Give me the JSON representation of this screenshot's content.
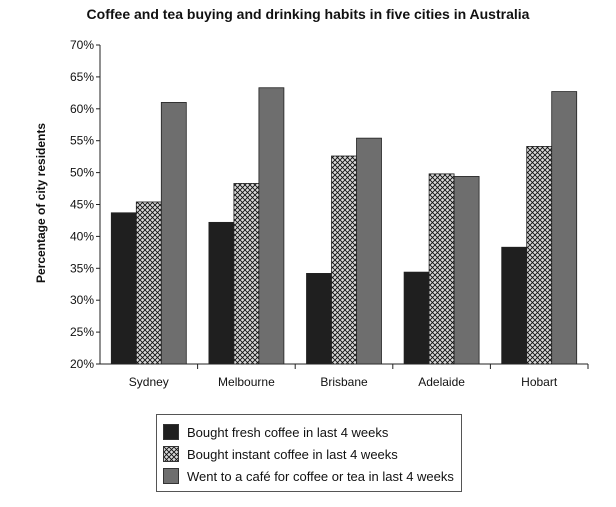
{
  "chart_data": {
    "type": "bar",
    "title": "Coffee and tea buying and drinking habits in five cities in Australia",
    "xlabel": "",
    "ylabel": "Percentage of city residents",
    "ylim": [
      20,
      70
    ],
    "ytick_step": 5,
    "ytick_suffix": "%",
    "grid": false,
    "legend_position": "bottom",
    "categories": [
      "Sydney",
      "Melbourne",
      "Brisbane",
      "Adelaide",
      "Hobart"
    ],
    "series": [
      {
        "name": "Bought fresh coffee in last 4 weeks",
        "color": "#1f1f1f",
        "pattern": "solid",
        "values": [
          43.7,
          42.2,
          34.2,
          34.4,
          38.3
        ]
      },
      {
        "name": "Bought instant coffee in last 4 weeks",
        "color": "#bdbdbd",
        "pattern": "crosshatch",
        "values": [
          45.4,
          48.3,
          52.6,
          49.8,
          54.1
        ]
      },
      {
        "name": "Went to a café for coffee or tea in last 4 weeks",
        "color": "#6e6e6e",
        "pattern": "solid",
        "values": [
          61.0,
          63.3,
          55.4,
          49.4,
          62.7
        ]
      }
    ]
  }
}
